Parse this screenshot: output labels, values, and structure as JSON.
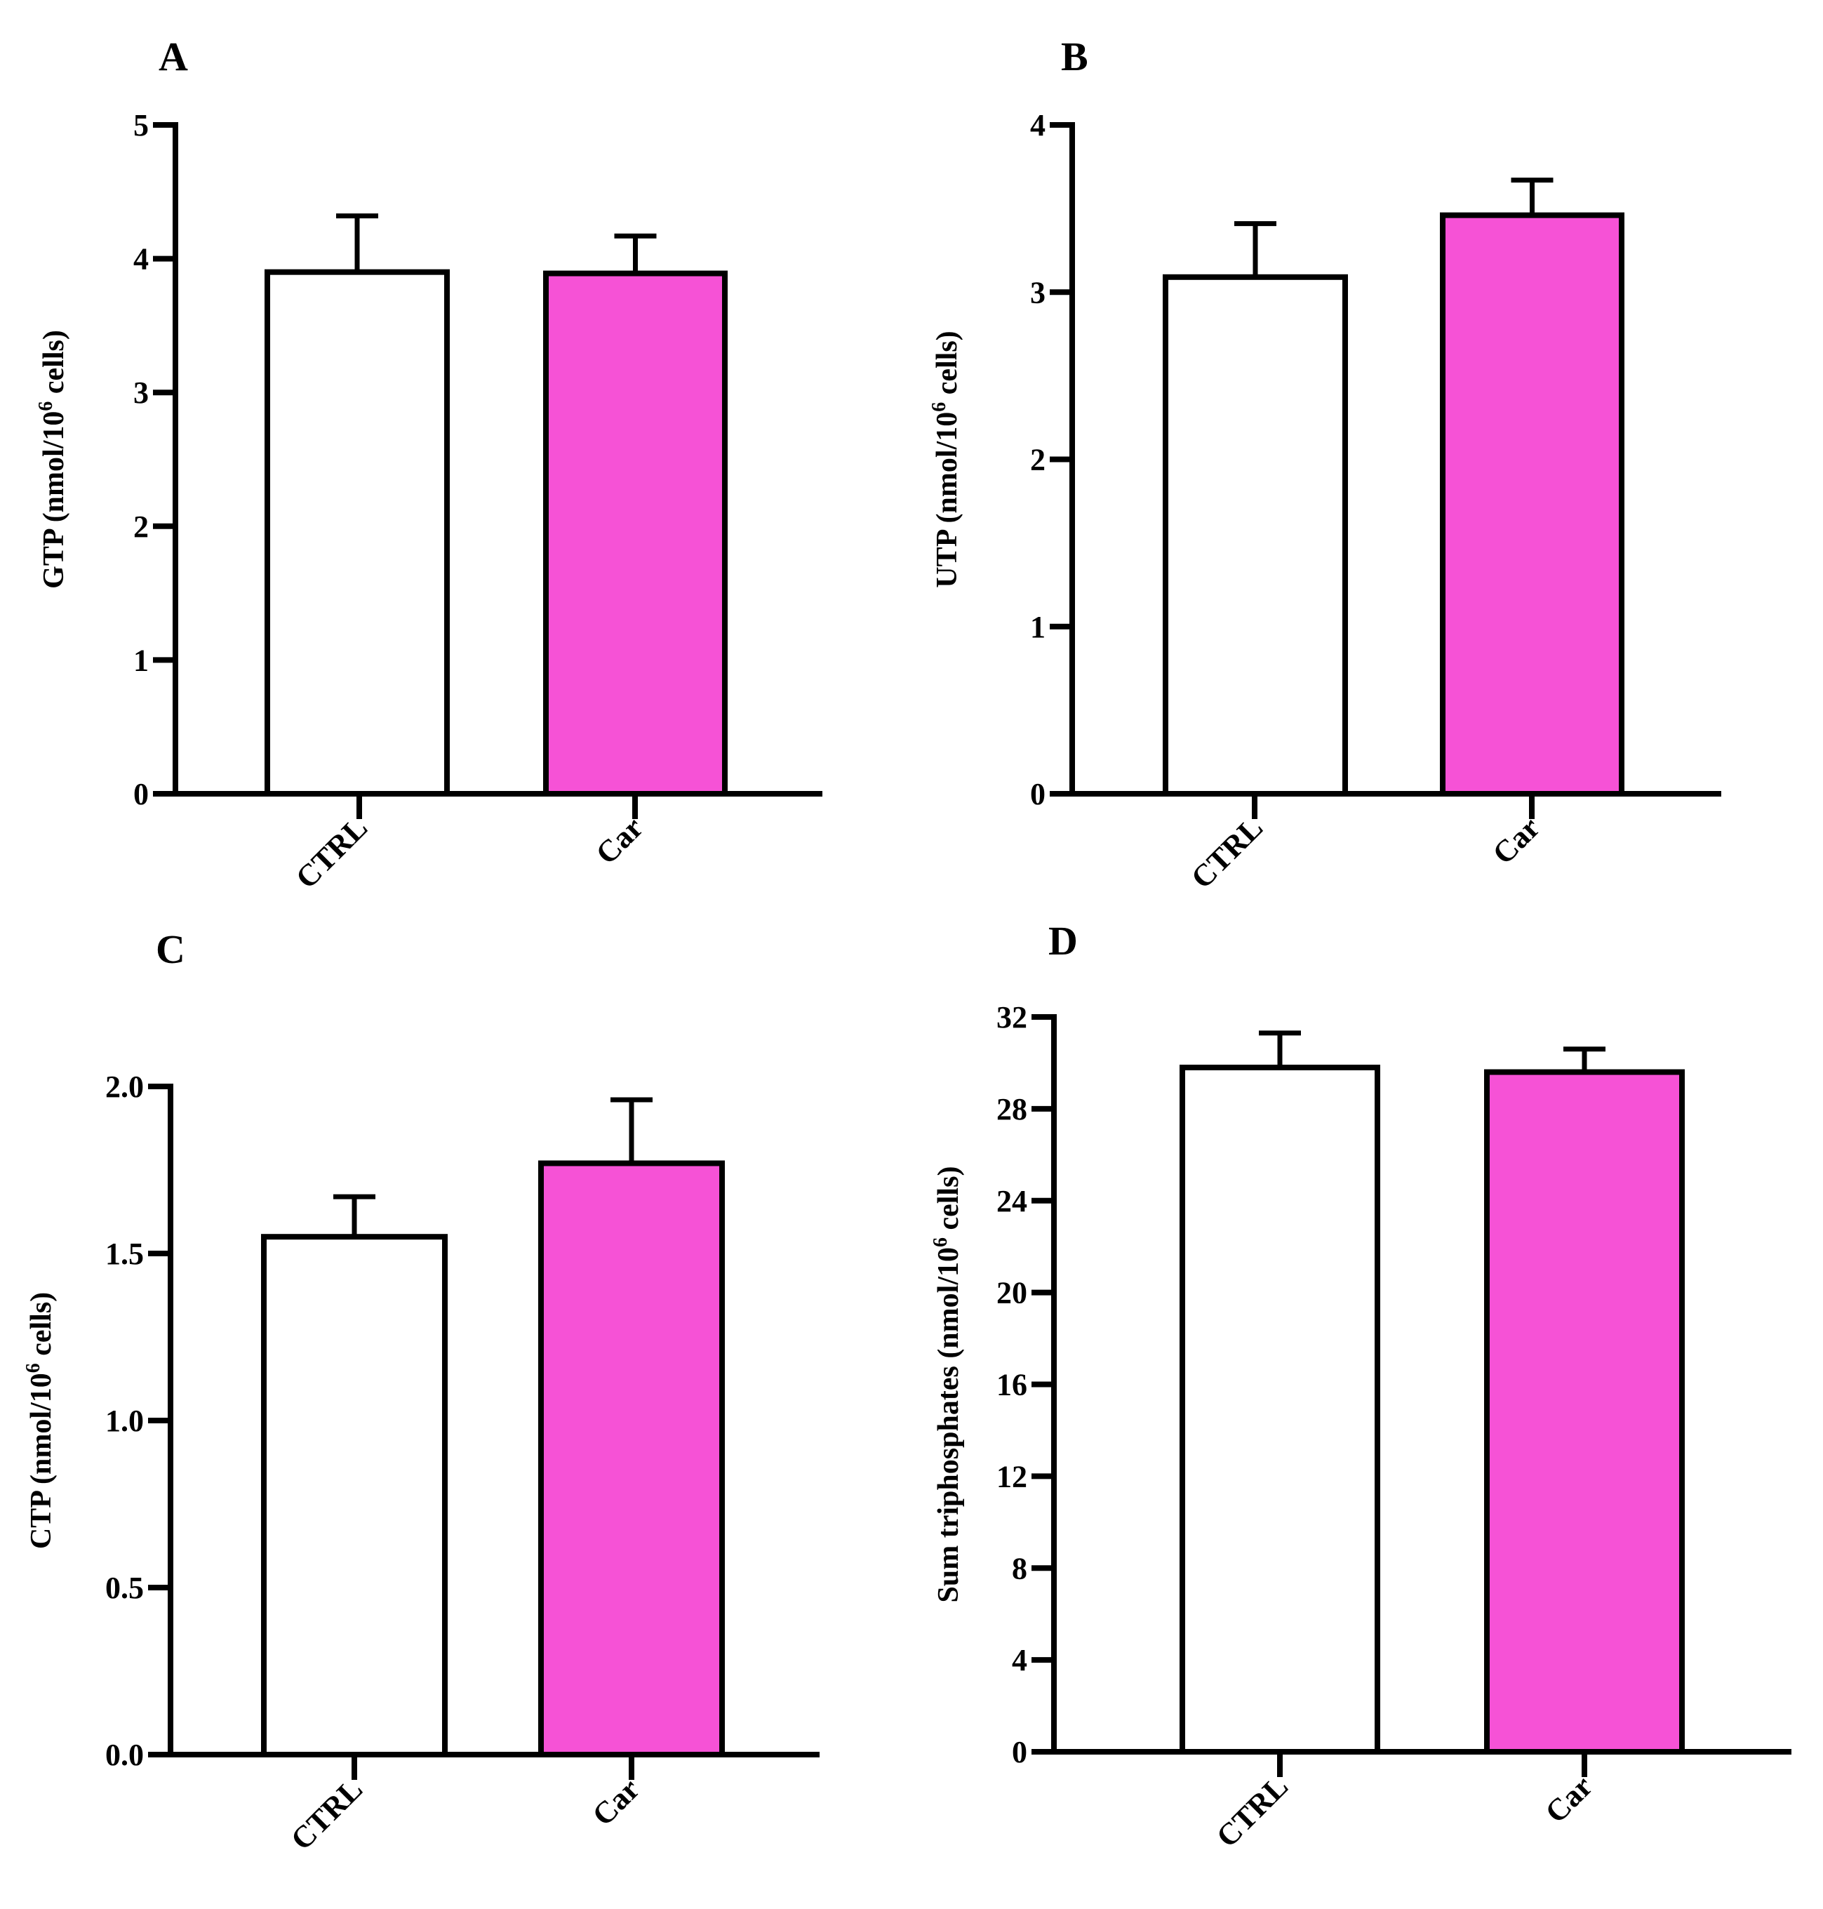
{
  "figure": {
    "colors": {
      "ctrl": "#ffffff",
      "car": "#f652d6",
      "axis": "#000000"
    }
  },
  "chart_data": [
    {
      "panel": "A",
      "type": "bar",
      "categories": [
        "CTRL",
        "Car"
      ],
      "values": [
        3.9,
        3.89
      ],
      "errors": [
        0.42,
        0.28
      ],
      "ylabel_main": "GTP (nmol/10",
      "ylabel_sup": "6",
      "ylabel_tail": " cells)",
      "ylim": [
        0,
        5
      ],
      "yticks": [
        0,
        1,
        2,
        3,
        4,
        5
      ],
      "ytick_labels": [
        "0",
        "1",
        "2",
        "3",
        "4",
        "5"
      ]
    },
    {
      "panel": "B",
      "type": "bar",
      "categories": [
        "CTRL",
        "Car"
      ],
      "values": [
        3.09,
        3.46
      ],
      "errors": [
        0.32,
        0.21
      ],
      "ylabel_main": "UTP (nmol/10",
      "ylabel_sup": "6",
      "ylabel_tail": " cells)",
      "ylim": [
        0,
        4
      ],
      "yticks": [
        0,
        1,
        2,
        3,
        4
      ],
      "ytick_labels": [
        "0",
        "1",
        "2",
        "3",
        "4"
      ]
    },
    {
      "panel": "C",
      "type": "bar",
      "categories": [
        "CTRL",
        "Car"
      ],
      "values": [
        1.55,
        1.77
      ],
      "errors": [
        0.12,
        0.19
      ],
      "ylabel_main": "CTP (nmol/10",
      "ylabel_sup": "6",
      "ylabel_tail": " cells)",
      "ylim": [
        0,
        2
      ],
      "yticks": [
        0,
        0.5,
        1,
        1.5,
        2
      ],
      "ytick_labels": [
        "0.0",
        "0.5",
        "1.0",
        "1.5",
        "2.0"
      ]
    },
    {
      "panel": "D",
      "type": "bar",
      "categories": [
        "CTRL",
        "Car"
      ],
      "values": [
        29.8,
        29.6
      ],
      "errors": [
        1.5,
        1.0
      ],
      "ylabel_main": "Sum triphosphates (nmol/10",
      "ylabel_sup": "6",
      "ylabel_tail": " cells)",
      "ylim": [
        0,
        32
      ],
      "yticks": [
        0,
        4,
        8,
        12,
        16,
        20,
        24,
        28,
        32
      ],
      "ytick_labels": [
        "0",
        "4",
        "8",
        "12",
        "16",
        "20",
        "24",
        "28",
        "32"
      ]
    }
  ]
}
